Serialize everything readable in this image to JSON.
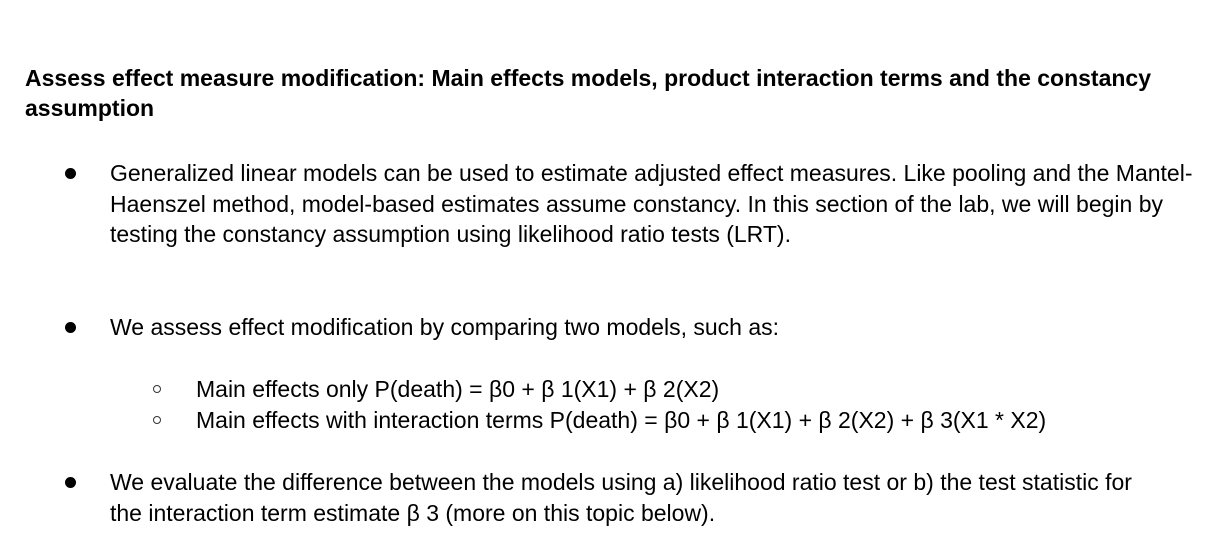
{
  "document": {
    "heading": "Assess effect measure modification: Main effects models, product interaction terms and the constancy assumption",
    "bullets": [
      {
        "text": "Generalized linear models can be used to estimate adjusted effect measures. Like pooling and the Mantel-Haenszel method, model-based estimates assume constancy. In this section of the lab, we will begin by testing the constancy assumption using likelihood ratio tests (LRT)."
      },
      {
        "text": "We assess effect modification by comparing two models, such as:",
        "sub_items": [
          "Main effects only P(death) = β0 + β 1(X1) + β 2(X2)",
          "Main effects with interaction terms P(death) = β0 + β 1(X1) + β 2(X2) + β 3(X1 * X2)"
        ]
      },
      {
        "text": "We evaluate the difference between the models using a) likelihood ratio test or b) the test statistic for the interaction term estimate β 3 (more on this topic below)."
      }
    ]
  }
}
